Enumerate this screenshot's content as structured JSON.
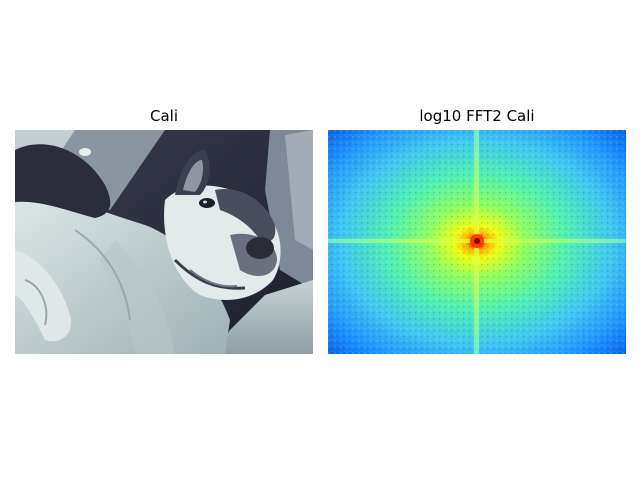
{
  "figure": {
    "panels": [
      {
        "title": "Cali",
        "content": "grayscale-photo-of-dog",
        "colormap": "bone"
      },
      {
        "title": "log10 FFT2 Cali",
        "content": "log-magnitude-2d-fft-spectrum",
        "colormap": "jet"
      }
    ]
  }
}
